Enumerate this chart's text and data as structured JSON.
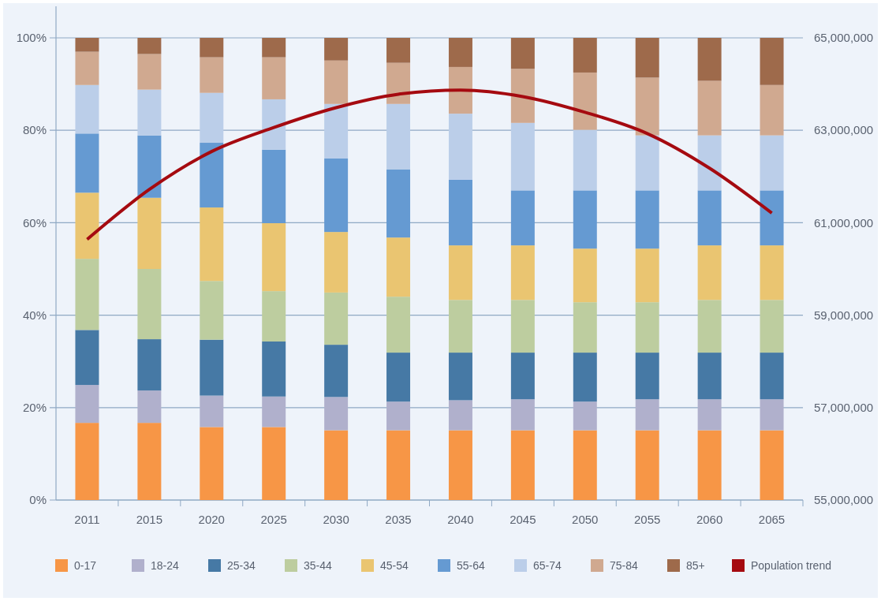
{
  "chart_data": {
    "type": "bar",
    "stacked": true,
    "categories": [
      "2011",
      "2015",
      "2020",
      "2025",
      "2030",
      "2035",
      "2040",
      "2045",
      "2050",
      "2055",
      "2060",
      "2065"
    ],
    "ylim": [
      0,
      100
    ],
    "yticks": [
      {
        "value": 0,
        "label": "0%"
      },
      {
        "value": 20,
        "label": "20%"
      },
      {
        "value": 40,
        "label": "40%"
      },
      {
        "value": 60,
        "label": "60%"
      },
      {
        "value": 80,
        "label": "80%"
      },
      {
        "value": 100,
        "label": "100%"
      }
    ],
    "y2lim": [
      55000000,
      65000000
    ],
    "y2ticks": [
      {
        "value": 55000000,
        "label": "55,000,000"
      },
      {
        "value": 57000000,
        "label": "57,000,000"
      },
      {
        "value": 59000000,
        "label": "59,000,000"
      },
      {
        "value": 61000000,
        "label": "61,000,000"
      },
      {
        "value": 63000000,
        "label": "63,000,000"
      },
      {
        "value": 65000000,
        "label": "65,000,000"
      }
    ],
    "grid": "y",
    "legend": "bottom",
    "marker": "none",
    "line_style": "solid",
    "series": [
      {
        "name": "0-17",
        "color": "#f79646",
        "values": [
          16.7,
          16.7,
          15.8,
          15.8,
          15.1,
          15.1,
          15.1,
          15.1,
          15.1,
          15.1,
          15.1,
          15.1
        ]
      },
      {
        "name": "18-24",
        "color": "#b0b0cc",
        "values": [
          8.2,
          7.0,
          6.8,
          6.6,
          7.2,
          6.2,
          6.5,
          6.7,
          6.2,
          6.7,
          6.7,
          6.7
        ]
      },
      {
        "name": "25-34",
        "color": "#4679a5",
        "values": [
          11.9,
          11.1,
          12.1,
          11.9,
          11.3,
          10.6,
          10.3,
          10.1,
          10.6,
          10.1,
          10.1,
          10.1
        ]
      },
      {
        "name": "35-44",
        "color": "#bdcd9f",
        "values": [
          15.4,
          15.2,
          12.7,
          10.9,
          11.3,
          12.1,
          11.4,
          11.4,
          10.9,
          10.9,
          11.4,
          11.4
        ]
      },
      {
        "name": "45-54",
        "color": "#eac571",
        "values": [
          14.3,
          15.4,
          15.9,
          14.7,
          13.1,
          12.8,
          11.8,
          11.8,
          11.6,
          11.6,
          11.8,
          11.8
        ]
      },
      {
        "name": "55-64",
        "color": "#659ad2",
        "values": [
          12.8,
          13.5,
          14.0,
          15.9,
          15.9,
          14.7,
          14.2,
          11.9,
          12.6,
          12.6,
          11.9,
          11.9
        ]
      },
      {
        "name": "65-74",
        "color": "#bbcee9",
        "values": [
          10.5,
          9.9,
          10.8,
          10.9,
          11.8,
          14.2,
          14.3,
          14.6,
          13.1,
          11.9,
          11.9,
          11.9
        ]
      },
      {
        "name": "75-84",
        "color": "#d0a990",
        "values": [
          7.2,
          7.7,
          7.7,
          9.1,
          9.4,
          8.9,
          10.1,
          11.7,
          12.4,
          12.5,
          11.8,
          10.9
        ]
      },
      {
        "name": "85+",
        "color": "#9e6a4b",
        "values": [
          3.0,
          3.5,
          4.2,
          4.2,
          4.9,
          5.4,
          6.3,
          6.7,
          7.5,
          8.6,
          9.3,
          10.2
        ]
      },
      {
        "name": "Population trend",
        "type": "line",
        "axis": "y2",
        "color": "#a50a10",
        "values": [
          60640000,
          61720000,
          62540000,
          63060000,
          63490000,
          63780000,
          63870000,
          63730000,
          63390000,
          62930000,
          62180000,
          61210000
        ]
      }
    ]
  }
}
